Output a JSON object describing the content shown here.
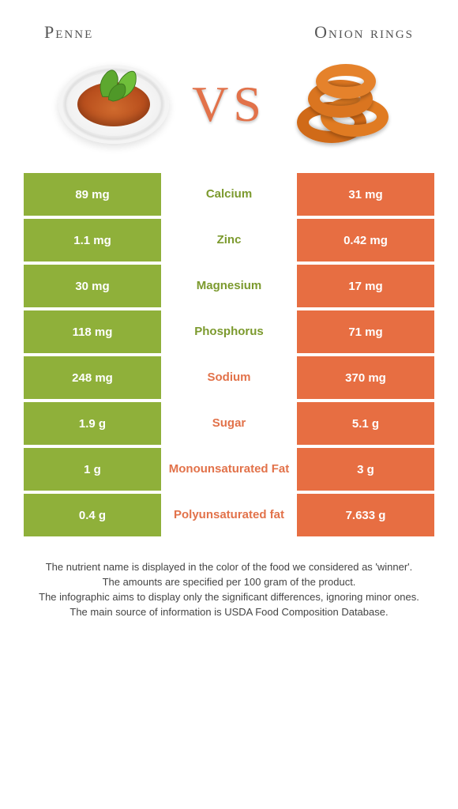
{
  "header": {
    "left_title": "Penne",
    "right_title": "Onion rings"
  },
  "vs_label": "VS",
  "colors": {
    "left_col": "#8fb03a",
    "right_col": "#e76e42",
    "left_text_winner": "#7c9a2e",
    "right_text_winner": "#e2724a",
    "vs_color": "#e2724a",
    "row_bg": "#ffffff"
  },
  "rows": [
    {
      "nutrient": "Calcium",
      "left": "89 mg",
      "right": "31 mg",
      "winner": "left"
    },
    {
      "nutrient": "Zinc",
      "left": "1.1 mg",
      "right": "0.42 mg",
      "winner": "left"
    },
    {
      "nutrient": "Magnesium",
      "left": "30 mg",
      "right": "17 mg",
      "winner": "left"
    },
    {
      "nutrient": "Phosphorus",
      "left": "118 mg",
      "right": "71 mg",
      "winner": "left"
    },
    {
      "nutrient": "Sodium",
      "left": "248 mg",
      "right": "370 mg",
      "winner": "right"
    },
    {
      "nutrient": "Sugar",
      "left": "1.9 g",
      "right": "5.1 g",
      "winner": "right"
    },
    {
      "nutrient": "Monounsaturated Fat",
      "left": "1 g",
      "right": "3 g",
      "winner": "right"
    },
    {
      "nutrient": "Polyunsaturated fat",
      "left": "0.4 g",
      "right": "7.633 g",
      "winner": "right"
    }
  ],
  "footer_lines": [
    "The nutrient name is displayed in the color of the food we considered as 'winner'.",
    "The amounts are specified per 100 gram of the product.",
    "The infographic aims to display only the significant differences, ignoring minor ones.",
    "The main source of information is USDA Food Composition Database."
  ]
}
